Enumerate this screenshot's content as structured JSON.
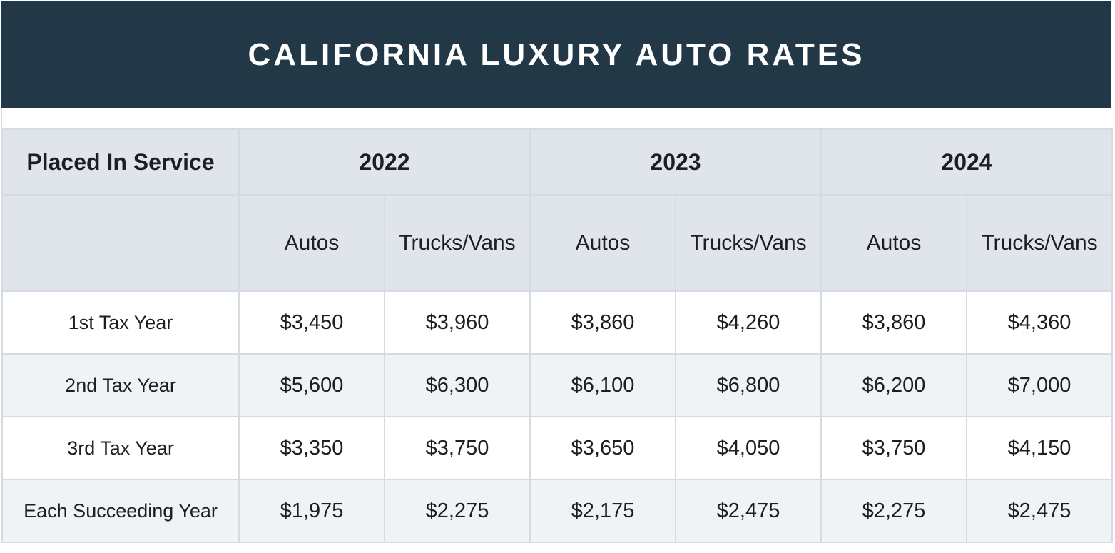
{
  "title": "CALIFORNIA LUXURY AUTO RATES",
  "header": {
    "first_col": "Placed In Service",
    "years": [
      "2022",
      "2023",
      "2024"
    ],
    "sub_columns": [
      "Autos",
      "Trucks/Vans",
      "Autos",
      "Trucks/Vans",
      "Autos",
      "Trucks/Vans"
    ]
  },
  "rows": [
    {
      "label": "1st Tax Year",
      "values": [
        "$3,450",
        "$3,960",
        "$3,860",
        "$4,260",
        "$3,860",
        "$4,360"
      ]
    },
    {
      "label": "2nd Tax Year",
      "values": [
        "$5,600",
        "$6,300",
        "$6,100",
        "$6,800",
        "$6,200",
        "$7,000"
      ]
    },
    {
      "label": "3rd Tax Year",
      "values": [
        "$3,350",
        "$3,750",
        "$3,650",
        "$4,050",
        "$3,750",
        "$4,150"
      ]
    },
    {
      "label": "Each Succeeding Year",
      "values": [
        "$1,975",
        "$2,275",
        "$2,175",
        "$2,475",
        "$2,275",
        "$2,475"
      ]
    }
  ],
  "colors": {
    "title_bg": "#223847",
    "header_bg": "#dfe5eb",
    "alt_row_bg": "#f0f3f6",
    "border": "#d5dbe0"
  }
}
